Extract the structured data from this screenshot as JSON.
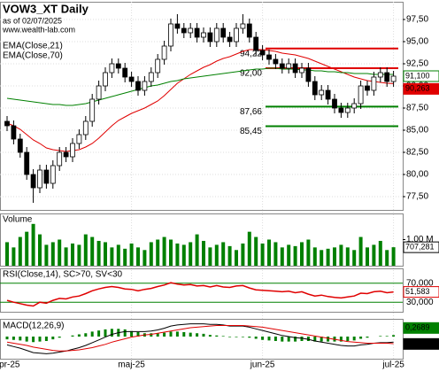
{
  "chart_data": [
    {
      "type": "candlestick",
      "title": "VOW3_XT Daily",
      "subtitle": "as of 02/07/2025",
      "source": "www.wealth-lab.com",
      "categories": [
        "apr-25",
        null,
        null,
        null,
        null,
        null,
        null,
        null,
        null,
        null,
        null,
        null,
        null,
        null,
        null,
        null,
        null,
        null,
        null,
        "maj-25",
        null,
        null,
        null,
        null,
        null,
        null,
        null,
        null,
        null,
        null,
        null,
        null,
        null,
        null,
        null,
        null,
        null,
        null,
        null,
        "jun-25",
        null,
        null,
        null,
        null,
        null,
        null,
        null,
        null,
        null,
        null,
        null,
        null,
        null,
        null,
        null,
        null,
        null,
        null,
        null,
        "jul-25"
      ],
      "open": [
        86.0,
        85.5,
        84.0,
        82.5,
        80.0,
        78.5,
        80.5,
        79.0,
        81.0,
        82.5,
        82.0,
        83.5,
        84.5,
        86.0,
        88.5,
        90.0,
        91.5,
        92.5,
        92.0,
        91.0,
        90.5,
        89.5,
        90.5,
        91.5,
        93.0,
        94.5,
        97.0,
        96.5,
        96.0,
        96.5,
        95.5,
        96.0,
        95.0,
        96.5,
        95.5,
        95.0,
        96.5,
        97.0,
        95.5,
        94.0,
        93.5,
        93.0,
        92.5,
        92.0,
        92.5,
        91.5,
        92.0,
        90.5,
        89.0,
        89.5,
        88.5,
        87.5,
        87.0,
        87.5,
        88.0,
        90.0,
        89.5,
        91.0,
        91.5,
        90.5
      ],
      "high": [
        86.6,
        86.1,
        84.6,
        83.1,
        80.6,
        81.1,
        81.1,
        81.6,
        83.1,
        83.1,
        84.1,
        85.1,
        86.6,
        89.1,
        90.6,
        92.1,
        93.1,
        93.1,
        92.6,
        91.6,
        91.1,
        91.1,
        92.1,
        93.6,
        95.1,
        97.6,
        98.1,
        97.1,
        97.1,
        97.1,
        96.6,
        96.6,
        97.1,
        97.1,
        96.1,
        97.1,
        98.1,
        97.6,
        96.1,
        94.6,
        94.1,
        93.6,
        93.1,
        93.1,
        93.1,
        92.6,
        92.6,
        91.1,
        90.1,
        90.1,
        89.1,
        88.1,
        88.1,
        88.6,
        90.6,
        90.6,
        91.6,
        92.1,
        92.1,
        91.7
      ],
      "low": [
        84.9,
        83.4,
        81.9,
        79.4,
        76.8,
        77.9,
        78.4,
        78.4,
        80.4,
        81.4,
        81.4,
        82.9,
        83.9,
        85.4,
        87.9,
        89.4,
        90.9,
        91.4,
        90.4,
        89.9,
        88.9,
        88.9,
        89.9,
        90.9,
        92.4,
        93.9,
        95.9,
        95.4,
        95.4,
        94.9,
        94.9,
        94.4,
        94.4,
        94.9,
        94.4,
        94.4,
        95.9,
        94.9,
        93.4,
        92.9,
        92.4,
        91.9,
        91.4,
        91.4,
        90.9,
        90.9,
        89.9,
        88.4,
        88.4,
        87.9,
        86.9,
        86.4,
        86.4,
        86.9,
        87.4,
        88.9,
        88.9,
        90.4,
        89.9,
        89.9
      ],
      "close": [
        85.5,
        84.0,
        82.5,
        80.0,
        78.5,
        80.5,
        79.0,
        81.0,
        82.5,
        82.0,
        83.5,
        84.5,
        86.0,
        88.5,
        90.0,
        91.5,
        92.5,
        92.0,
        91.0,
        90.5,
        89.5,
        90.5,
        91.5,
        93.0,
        94.5,
        97.0,
        96.5,
        96.0,
        96.5,
        95.5,
        96.0,
        95.0,
        96.5,
        95.5,
        95.0,
        96.5,
        97.0,
        95.5,
        94.0,
        93.5,
        93.0,
        92.5,
        92.0,
        92.5,
        91.5,
        92.0,
        90.5,
        89.0,
        89.5,
        88.5,
        87.5,
        87.0,
        87.5,
        88.0,
        90.0,
        89.5,
        91.0,
        91.5,
        90.5,
        91.1
      ],
      "close_last_label": "91,100",
      "up_color": "#ffffff",
      "down_color": "#000000",
      "series": [
        {
          "name": "EMA(Close,21)",
          "color": "#e00000",
          "last_label": "90,263",
          "values": [
            85.8,
            85.5,
            85.1,
            84.5,
            83.9,
            83.5,
            83.0,
            82.8,
            82.7,
            82.6,
            82.7,
            82.8,
            83.1,
            83.5,
            84.1,
            84.8,
            85.5,
            86.1,
            86.5,
            86.9,
            87.2,
            87.5,
            87.9,
            88.3,
            88.9,
            89.6,
            90.3,
            90.8,
            91.3,
            91.7,
            92.1,
            92.4,
            92.8,
            93.1,
            93.3,
            93.6,
            93.9,
            94.1,
            94.1,
            94.1,
            94.0,
            93.9,
            93.7,
            93.6,
            93.5,
            93.3,
            93.1,
            92.8,
            92.5,
            92.2,
            91.9,
            91.6,
            91.3,
            91.0,
            90.8,
            90.6,
            90.5,
            90.4,
            90.3,
            90.263
          ]
        },
        {
          "name": "EMA(Close,70)",
          "color": "#008000",
          "values": [
            88.6,
            88.5,
            88.4,
            88.3,
            88.2,
            88.1,
            88.0,
            87.9,
            87.9,
            87.8,
            87.8,
            87.9,
            88.0,
            88.2,
            88.4,
            88.6,
            88.8,
            89.0,
            89.2,
            89.4,
            89.6,
            89.8,
            90.0,
            90.1,
            90.3,
            90.5,
            90.6,
            90.8,
            90.9,
            91.0,
            91.1,
            91.2,
            91.3,
            91.4,
            91.5,
            91.6,
            91.7,
            91.8,
            91.9,
            91.9,
            92.0,
            92.0,
            91.9,
            91.9,
            91.9,
            91.8,
            91.8,
            91.7,
            91.7,
            91.6,
            91.6,
            91.5,
            91.5,
            91.4,
            91.4,
            91.4,
            91.3,
            91.3,
            91.3,
            91.3
          ]
        }
      ],
      "levels": [
        {
          "value": 94.22,
          "label": "94,22",
          "color": "#e00000"
        },
        {
          "value": 92.0,
          "label": "92,00",
          "color": "#e00000"
        },
        {
          "value": 87.66,
          "label": "87,66",
          "color": "#008000"
        },
        {
          "value": 85.45,
          "label": "85,45",
          "color": "#008000"
        }
      ],
      "ylim": [
        76.0,
        99.5
      ],
      "yticks": [
        {
          "value": 77.5,
          "label": "77,50"
        },
        {
          "value": 80,
          "label": "80,00"
        },
        {
          "value": 82.5,
          "label": "82,50"
        },
        {
          "value": 85,
          "label": "85,00"
        },
        {
          "value": 87.5,
          "label": "87,50"
        },
        {
          "value": 90,
          "label": "90,00"
        },
        {
          "value": 92.5,
          "label": "92,50"
        },
        {
          "value": 95,
          "label": "95,00"
        },
        {
          "value": 97.5,
          "label": "97,50"
        }
      ],
      "grid": true
    },
    {
      "type": "bar",
      "title": "Volume",
      "color": "#008000",
      "last_label": "707,281",
      "values": [
        900000,
        700000,
        1100000,
        1300000,
        1600000,
        1200000,
        800000,
        900000,
        1000000,
        700000,
        850000,
        800000,
        1200000,
        1100000,
        950000,
        900000,
        700000,
        800000,
        650000,
        850000,
        700000,
        600000,
        900000,
        1000000,
        1100000,
        1000000,
        850000,
        800000,
        900000,
        1200000,
        950000,
        700000,
        800000,
        900000,
        750000,
        600000,
        850000,
        1300000,
        1100000,
        850000,
        1000000,
        900000,
        700000,
        800000,
        750000,
        900000,
        1000000,
        700000,
        600000,
        650000,
        700000,
        800000,
        700000,
        600000,
        1100000,
        700000,
        800000,
        950000,
        600000,
        707281
      ],
      "ylim": [
        0,
        2000000
      ],
      "yticks": [
        {
          "value": 1000000,
          "label": "1,00 M"
        }
      ]
    },
    {
      "type": "line",
      "title": "RSI(Close,14), SC>70, SV<30",
      "color": "#e00000",
      "band_color": "#008000",
      "last_label": "51,583",
      "values": [
        34,
        30,
        27,
        24,
        22,
        30,
        28,
        34,
        38,
        37,
        41,
        43,
        48,
        54,
        58,
        61,
        63,
        61,
        58,
        57,
        54,
        57,
        59,
        63,
        66,
        71,
        68,
        66,
        67,
        64,
        65,
        62,
        65,
        62,
        61,
        64,
        65,
        60,
        56,
        55,
        54,
        53,
        52,
        53,
        50,
        52,
        47,
        43,
        45,
        42,
        40,
        39,
        41,
        43,
        49,
        48,
        52,
        53,
        50,
        51.583
      ],
      "ylim": [
        10,
        101
      ],
      "yticks": [
        {
          "value": 70,
          "label": "70,000"
        },
        {
          "value": 30,
          "label": "30,000"
        }
      ]
    },
    {
      "type": "macd",
      "title": "MACD(12,26,9)",
      "ylim": [
        -4,
        3.2
      ],
      "macd": {
        "color": "#000000",
        "last_label": "-1,0137",
        "values": [
          -1.5,
          -1.8,
          -2.1,
          -2.5,
          -2.9,
          -3.0,
          -3.1,
          -3.0,
          -2.8,
          -2.6,
          -2.3,
          -2.0,
          -1.6,
          -1.1,
          -0.6,
          -0.1,
          0.4,
          0.7,
          0.9,
          0.9,
          0.9,
          0.9,
          1.0,
          1.2,
          1.5,
          1.9,
          2.1,
          2.2,
          2.3,
          2.3,
          2.3,
          2.2,
          2.2,
          2.1,
          1.9,
          1.9,
          1.9,
          1.7,
          1.4,
          1.1,
          0.8,
          0.5,
          0.2,
          0.0,
          -0.2,
          -0.3,
          -0.5,
          -0.8,
          -1.0,
          -1.2,
          -1.4,
          -1.6,
          -1.7,
          -1.7,
          -1.5,
          -1.4,
          -1.2,
          -1.1,
          -1.1,
          -1.0137
        ]
      },
      "signal": {
        "color": "#e00000",
        "values": [
          -1.0,
          -1.2,
          -1.4,
          -1.6,
          -1.9,
          -2.1,
          -2.3,
          -2.5,
          -2.6,
          -2.6,
          -2.5,
          -2.4,
          -2.2,
          -2.0,
          -1.7,
          -1.4,
          -1.0,
          -0.7,
          -0.4,
          -0.1,
          0.1,
          0.3,
          0.4,
          0.6,
          0.8,
          1.0,
          1.2,
          1.4,
          1.6,
          1.7,
          1.8,
          1.9,
          2.0,
          2.0,
          2.0,
          2.0,
          2.0,
          1.9,
          1.8,
          1.7,
          1.5,
          1.3,
          1.1,
          0.9,
          0.7,
          0.5,
          0.3,
          0.1,
          -0.1,
          -0.3,
          -0.5,
          -0.7,
          -0.9,
          -1.0,
          -1.1,
          -1.2,
          -1.2,
          -1.2,
          -1.2,
          -1.2826
        ]
      },
      "histogram": {
        "color": "#008000",
        "last_label": "0,2689",
        "values": [
          -0.5,
          -0.6,
          -0.7,
          -0.9,
          -1.0,
          -0.9,
          -0.8,
          -0.5,
          -0.2,
          0.0,
          0.2,
          0.4,
          0.6,
          0.9,
          1.1,
          1.3,
          1.4,
          1.4,
          1.3,
          1.0,
          0.8,
          0.6,
          0.6,
          0.6,
          0.7,
          0.9,
          0.9,
          0.8,
          0.7,
          0.6,
          0.5,
          0.3,
          0.2,
          0.1,
          -0.1,
          -0.1,
          -0.1,
          -0.2,
          -0.4,
          -0.6,
          -0.7,
          -0.8,
          -0.9,
          -0.9,
          -0.9,
          -0.8,
          -0.8,
          -0.9,
          -0.9,
          -0.9,
          -0.9,
          -0.9,
          -0.8,
          -0.7,
          -0.4,
          -0.2,
          0.0,
          0.1,
          0.1,
          0.2689
        ]
      }
    }
  ]
}
